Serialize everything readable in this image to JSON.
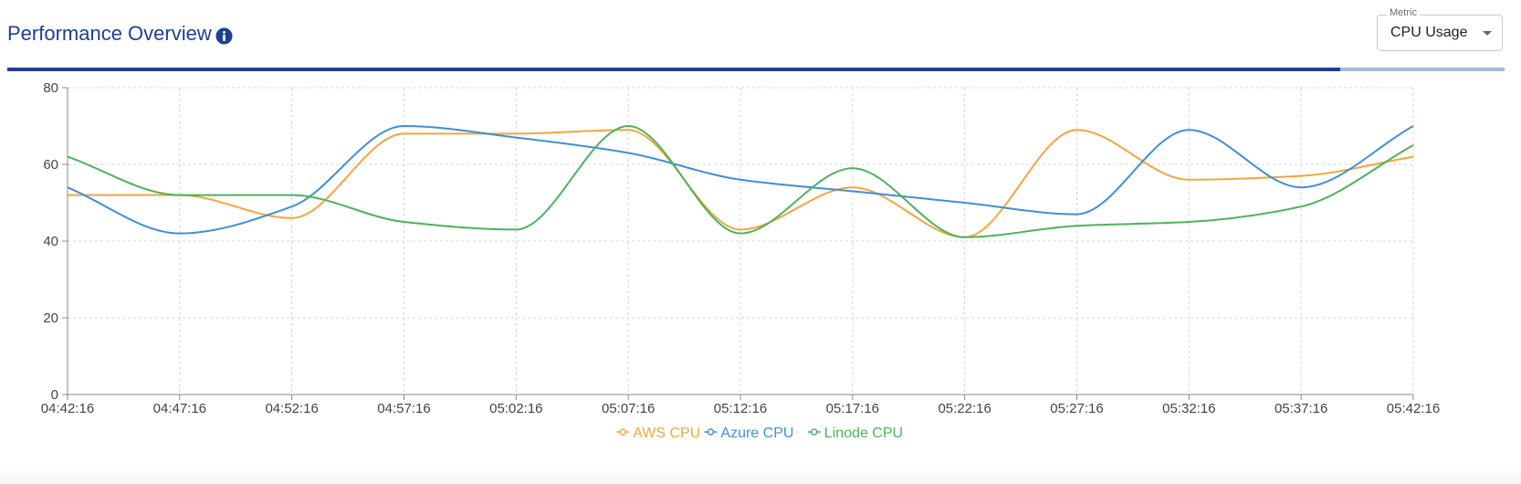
{
  "header": {
    "title": "Performance Overview",
    "info_icon": "info-icon",
    "progress_fraction": 0.89
  },
  "metric_select": {
    "label": "Metric",
    "value": "CPU Usage",
    "icon": "chevron-down-icon"
  },
  "colors": {
    "title": "#1f3f95",
    "progress": "#1f3f95",
    "progress_track": "#a9b9dd",
    "aws": "#f5a53b",
    "azure": "#3f8fd8",
    "linode": "#4cb35c",
    "grid": "#d6d6d6"
  },
  "chart_data": {
    "type": "line",
    "x": [
      "04:42:16",
      "04:47:16",
      "04:52:16",
      "04:57:16",
      "05:02:16",
      "05:07:16",
      "05:12:16",
      "05:17:16",
      "05:22:16",
      "05:27:16",
      "05:32:16",
      "05:37:16",
      "05:42:16"
    ],
    "y_ticks": [
      0,
      20,
      40,
      60,
      80
    ],
    "ylim": [
      0,
      80
    ],
    "grid": true,
    "legend_position": "bottom-center",
    "series": [
      {
        "name": "AWS CPU",
        "color": "#f5a53b",
        "values": [
          52,
          52,
          46,
          68,
          68,
          69,
          43,
          54,
          41,
          69,
          56,
          57,
          62
        ]
      },
      {
        "name": "Azure CPU",
        "color": "#3f8fd8",
        "values": [
          54,
          42,
          49,
          70,
          67,
          63,
          56,
          53,
          50,
          47,
          69,
          54,
          70
        ]
      },
      {
        "name": "Linode CPU",
        "color": "#4cb35c",
        "values": [
          62,
          52,
          52,
          45,
          43,
          70,
          42,
          59,
          41,
          44,
          45,
          49,
          65
        ]
      }
    ]
  }
}
